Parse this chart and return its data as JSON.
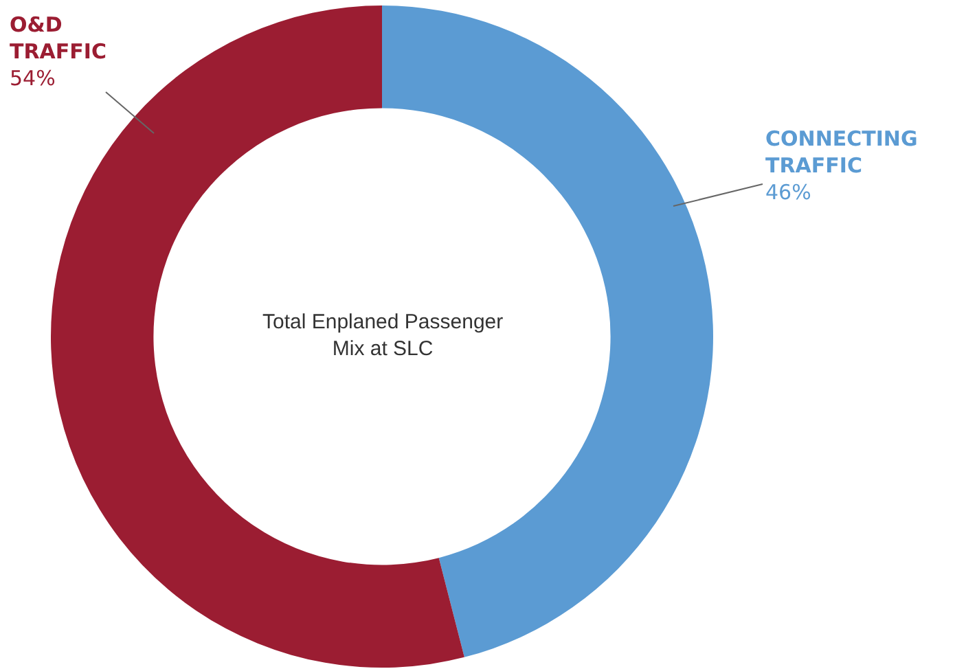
{
  "chart_data": {
    "type": "donut",
    "title": "Total Enplaned Passenger Mix at SLC",
    "categories": [
      "CONNECTING TRAFFIC",
      "O&D TRAFFIC"
    ],
    "values": [
      46,
      54
    ],
    "colors": [
      "#5b9bd3",
      "#9b1d32"
    ],
    "value_labels": [
      "46%",
      "54%"
    ],
    "legend": false
  }
}
